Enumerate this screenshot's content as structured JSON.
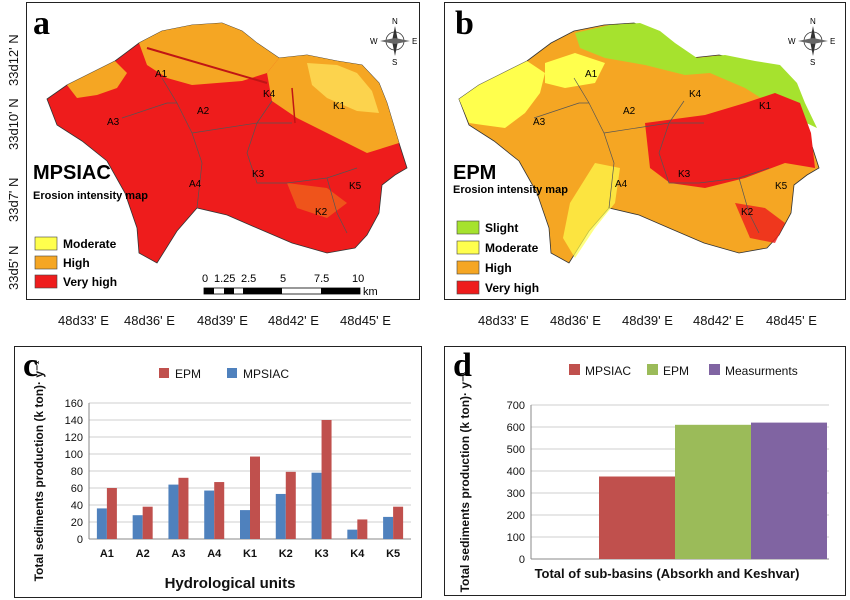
{
  "panels": {
    "a": {
      "letter": "a",
      "method": "MPSIAC",
      "subtitle": "Erosion intensity map",
      "legend": [
        {
          "label": "Moderate",
          "color": "#ffff4d"
        },
        {
          "label": "High",
          "color": "#f5a623"
        },
        {
          "label": "Very high",
          "color": "#ee1c1c"
        }
      ],
      "scale_ticks": [
        "0",
        "1.25",
        "2.5",
        "5",
        "7.5",
        "10"
      ],
      "scale_unit": "km"
    },
    "b": {
      "letter": "b",
      "method": "EPM",
      "subtitle": "Erosion intensity map",
      "legend": [
        {
          "label": "Slight",
          "color": "#a6e22e"
        },
        {
          "label": "Moderate",
          "color": "#ffff4d"
        },
        {
          "label": "High",
          "color": "#f5a623"
        },
        {
          "label": "Very high",
          "color": "#ee1c1c"
        }
      ]
    },
    "c": {
      "letter": "c"
    },
    "d": {
      "letter": "d"
    }
  },
  "map": {
    "lat_labels": [
      "33d12' N",
      "33d10' N",
      "33d7' N",
      "33d5' N"
    ],
    "lon_labels": [
      "48d33' E",
      "48d36' E",
      "48d39' E",
      "48d42' E",
      "48d45' E"
    ],
    "units": [
      "A1",
      "A2",
      "A3",
      "A4",
      "K1",
      "K2",
      "K3",
      "K4",
      "K5"
    ],
    "compass": {
      "n": "N",
      "s": "S",
      "e": "E",
      "w": "W"
    }
  },
  "chart_data": [
    {
      "type": "bar",
      "categories": [
        "A1",
        "A2",
        "A3",
        "A4",
        "K1",
        "K2",
        "K3",
        "K4",
        "K5"
      ],
      "series": [
        {
          "name": "EPM",
          "values": [
            60,
            38,
            72,
            67,
            97,
            79,
            140,
            23,
            38
          ],
          "color": "#c0504d"
        },
        {
          "name": "MPSIAC",
          "values": [
            36,
            28,
            64,
            57,
            34,
            53,
            78,
            11,
            26
          ],
          "color": "#4f81bd"
        }
      ],
      "xlabel": "Hydrological units",
      "ylabel": "Total sediments production (k ton)· y⁻¹",
      "ylim": [
        0,
        160
      ],
      "yticks": [
        "0",
        "20",
        "40",
        "60",
        "80",
        "100",
        "120",
        "140",
        "160"
      ],
      "grid": true,
      "legend": "top"
    },
    {
      "type": "bar",
      "categories": [
        "Total of sub-basins (Absorkh and Keshvar)"
      ],
      "series": [
        {
          "name": "MPSIAC",
          "values": [
            375
          ],
          "color": "#c0504d"
        },
        {
          "name": "EPM",
          "values": [
            610
          ],
          "color": "#9bbb59"
        },
        {
          "name": "Measurments",
          "values": [
            620
          ],
          "color": "#8064a2"
        }
      ],
      "xlabel": "Total of sub-basins (Absorkh and Keshvar)",
      "ylabel": "Total sediments production (k ton)· y⁻¹",
      "ylim": [
        0,
        700
      ],
      "yticks": [
        "0",
        "100",
        "200",
        "300",
        "400",
        "500",
        "600",
        "700"
      ],
      "grid": true,
      "legend": "top"
    }
  ]
}
